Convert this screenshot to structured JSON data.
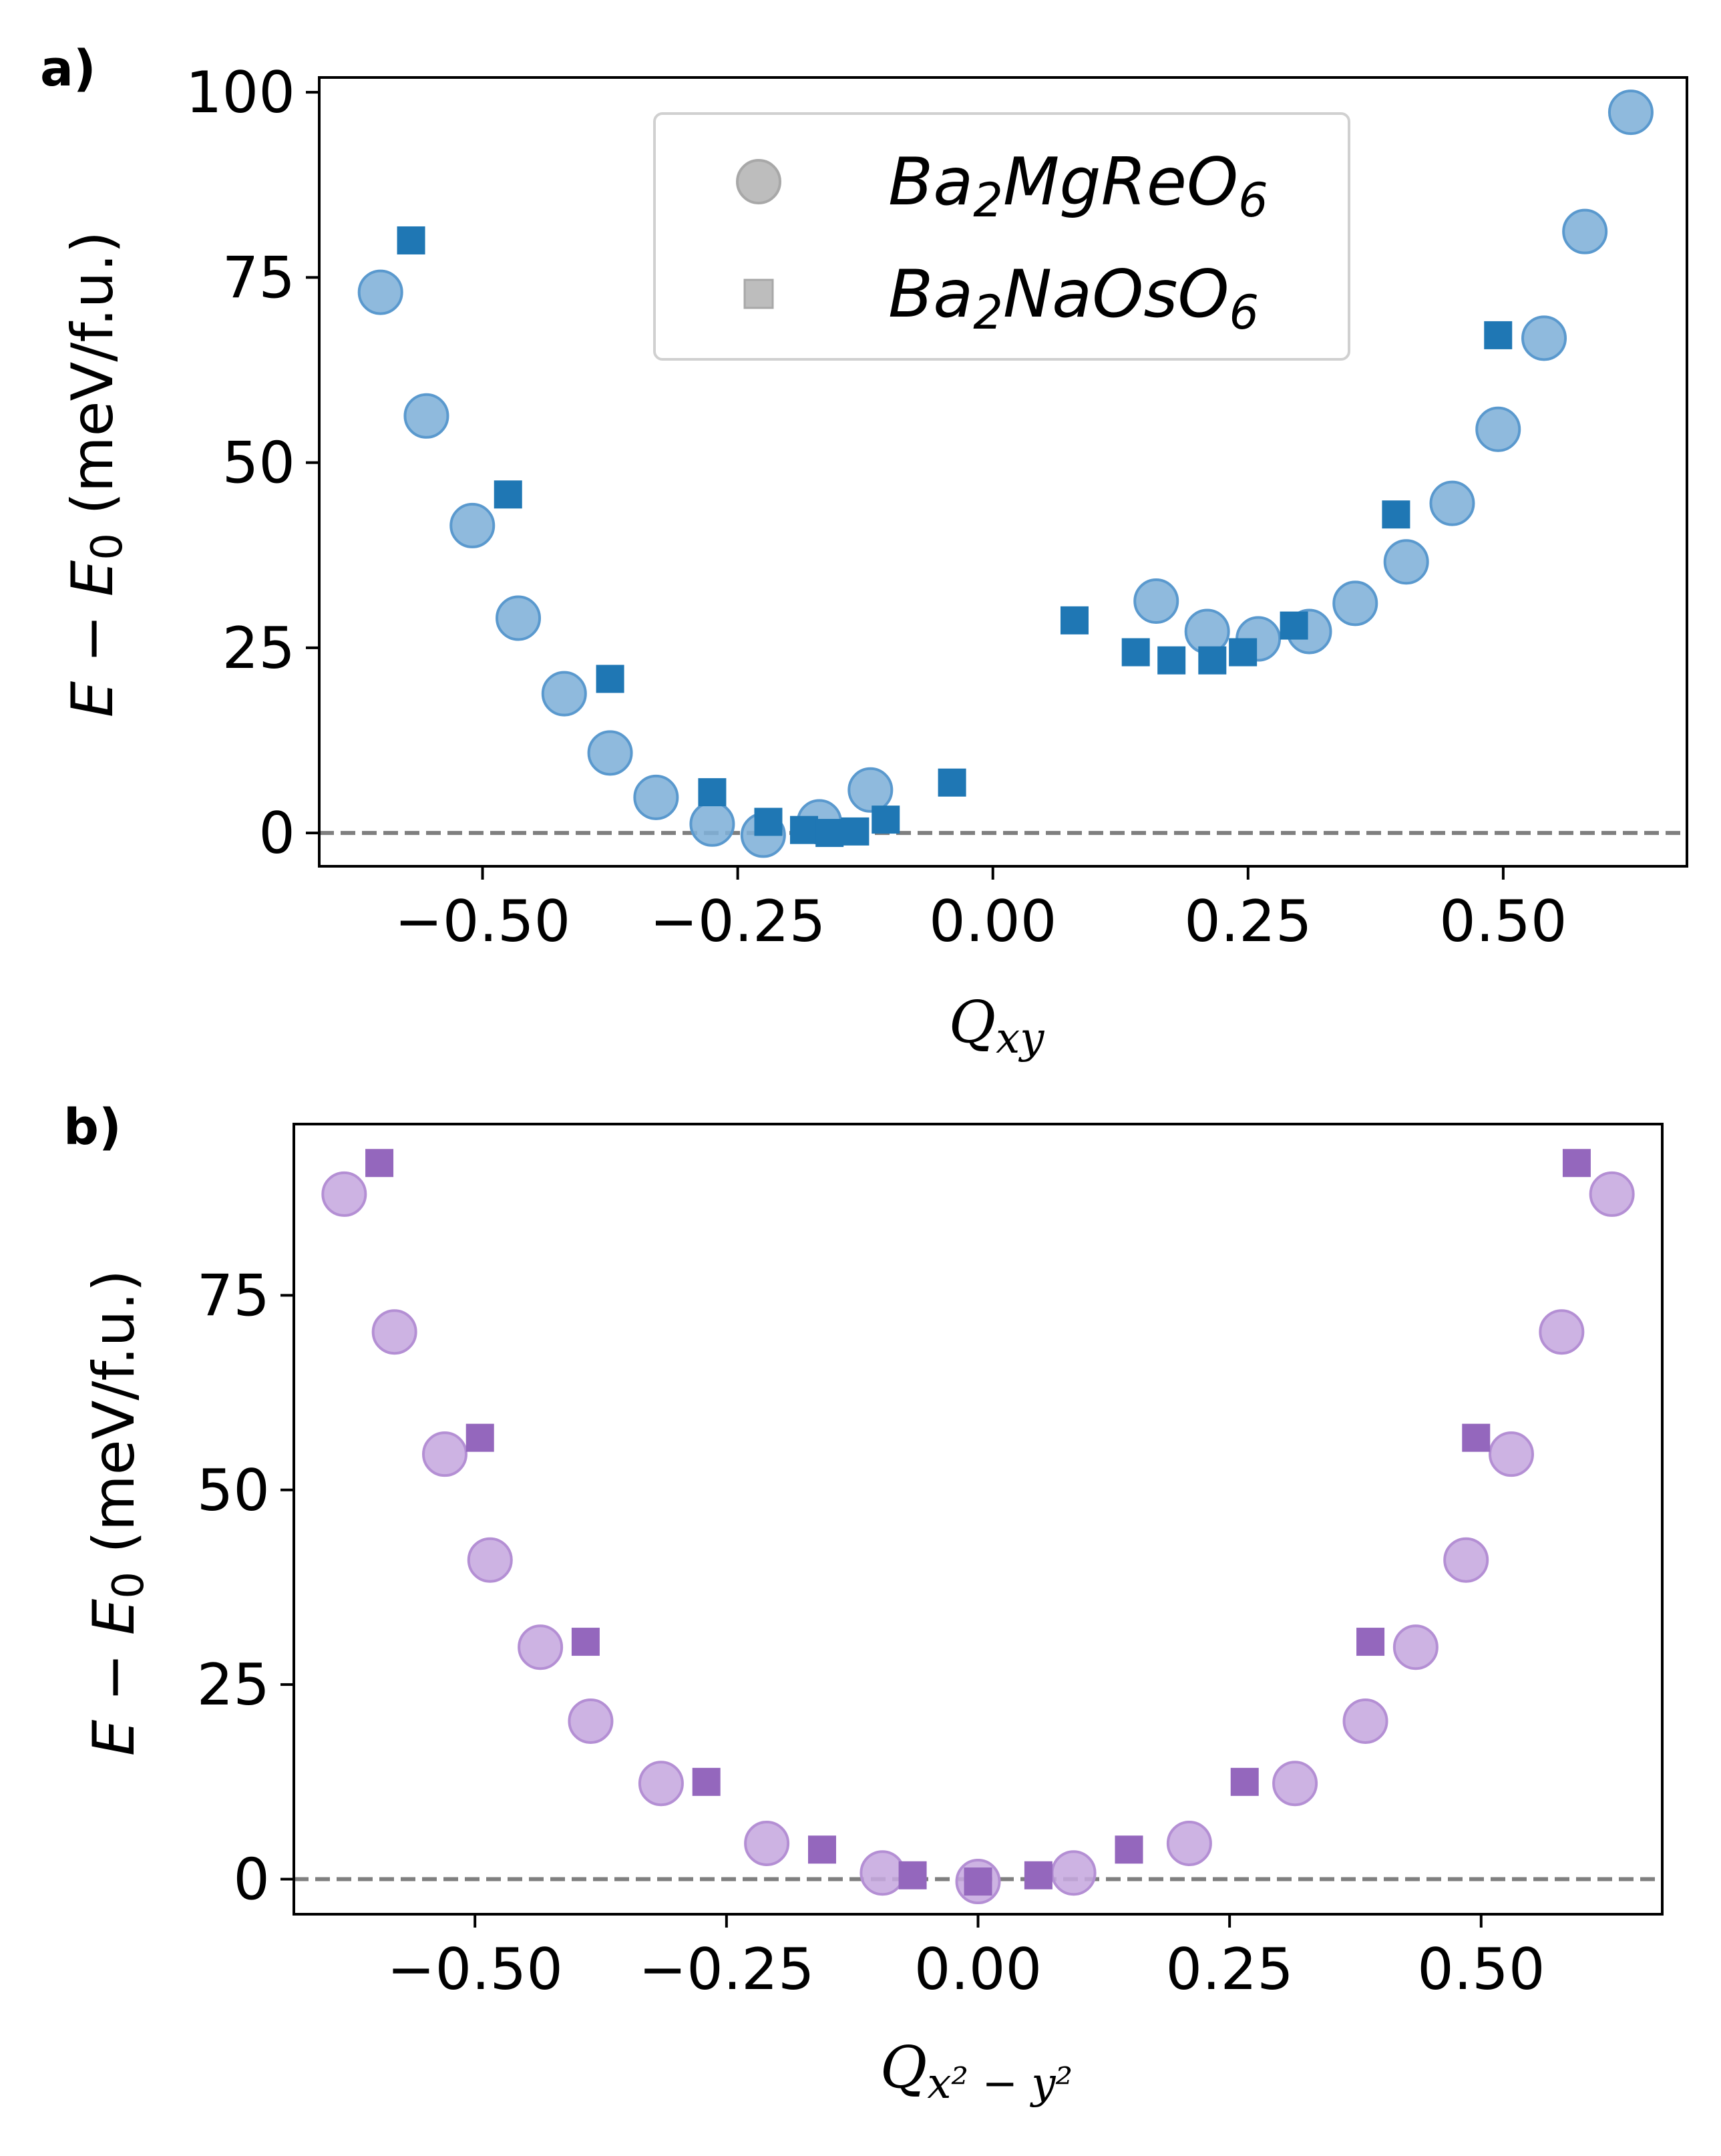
{
  "chart_data": [
    {
      "type": "scatter",
      "panel_label": "a)",
      "xlabel_main": "Q",
      "xlabel_sub": "xy",
      "ylabel": "E − E",
      "ylabel_sub": "0",
      "ylabel_units": " (meV/f.u.)",
      "xlim": [
        -0.66,
        0.68
      ],
      "ylim": [
        -4.5,
        102
      ],
      "xticks": [
        -0.5,
        -0.25,
        0.0,
        0.25,
        0.5
      ],
      "xtick_labels": [
        "−0.50",
        "−0.25",
        "0.00",
        "0.25",
        "0.50"
      ],
      "yticks": [
        0,
        25,
        50,
        75,
        100
      ],
      "ytick_labels": [
        "0",
        "25",
        "50",
        "75",
        "100"
      ],
      "reference_line_y": 0,
      "legend": {
        "placement": "top-center",
        "entries": [
          {
            "label_main": "Ba",
            "s1": "2",
            "label_mid": "MgReO",
            "s2": "6",
            "marker": "circle"
          },
          {
            "label_main": "Ba",
            "s1": "2",
            "label_mid": "NaOsO",
            "s2": "6",
            "marker": "square"
          }
        ]
      },
      "series": [
        {
          "name": "Ba2MgReO6",
          "marker": "circle",
          "color": "#7fb0d8",
          "edge_color": "#5a99ce",
          "points": [
            [
              -0.6,
              73.0
            ],
            [
              -0.555,
              56.3
            ],
            [
              -0.51,
              41.5
            ],
            [
              -0.465,
              29.0
            ],
            [
              -0.42,
              18.8
            ],
            [
              -0.375,
              10.8
            ],
            [
              -0.33,
              4.8
            ],
            [
              -0.275,
              1.2
            ],
            [
              -0.225,
              -0.3
            ],
            [
              -0.17,
              1.5
            ],
            [
              -0.12,
              5.8
            ],
            [
              0.16,
              31.3
            ],
            [
              0.21,
              27.2
            ],
            [
              0.26,
              26.2
            ],
            [
              0.31,
              27.2
            ],
            [
              0.355,
              31.0
            ],
            [
              0.405,
              36.6
            ],
            [
              0.45,
              44.5
            ],
            [
              0.495,
              54.5
            ],
            [
              0.54,
              66.8
            ],
            [
              0.58,
              81.2
            ],
            [
              0.625,
              97.3
            ]
          ]
        },
        {
          "name": "Ba2NaOsO6",
          "marker": "square",
          "color": "#1f77b4",
          "points": [
            [
              -0.57,
              80.0
            ],
            [
              -0.475,
              45.7
            ],
            [
              -0.375,
              20.8
            ],
            [
              -0.275,
              5.5
            ],
            [
              -0.22,
              1.5
            ],
            [
              -0.185,
              0.4
            ],
            [
              -0.16,
              0.0
            ],
            [
              -0.135,
              0.2
            ],
            [
              -0.105,
              1.8
            ],
            [
              -0.04,
              6.8
            ],
            [
              0.08,
              28.7
            ],
            [
              0.14,
              24.4
            ],
            [
              0.175,
              23.3
            ],
            [
              0.215,
              23.3
            ],
            [
              0.245,
              24.4
            ],
            [
              0.295,
              28.0
            ],
            [
              0.395,
              43.0
            ],
            [
              0.495,
              67.2
            ]
          ]
        }
      ]
    },
    {
      "type": "scatter",
      "panel_label": "b)",
      "xlabel_main": "Q",
      "xlabel_sub": "x² − y²",
      "ylabel": "E − E",
      "ylabel_sub": "0",
      "ylabel_units": " (meV/f.u.)",
      "xlim": [
        -0.68,
        0.68
      ],
      "ylim": [
        -4.5,
        97
      ],
      "xticks": [
        -0.5,
        -0.25,
        0.0,
        0.25,
        0.5
      ],
      "xtick_labels": [
        "−0.50",
        "−0.25",
        "0.00",
        "0.25",
        "0.50"
      ],
      "yticks": [
        0,
        25,
        50,
        75
      ],
      "ytick_labels": [
        "0",
        "25",
        "50",
        "75"
      ],
      "reference_line_y": 0,
      "series": [
        {
          "name": "Ba2MgReO6",
          "marker": "circle",
          "color": "#c6a8df",
          "edge_color": "#b48fd4",
          "points": [
            [
              -0.63,
              88.0
            ],
            [
              -0.58,
              70.3
            ],
            [
              -0.53,
              54.6
            ],
            [
              -0.485,
              41.0
            ],
            [
              -0.435,
              29.8
            ],
            [
              -0.385,
              20.3
            ],
            [
              -0.315,
              12.3
            ],
            [
              -0.21,
              4.6
            ],
            [
              -0.095,
              0.8
            ],
            [
              0.0,
              -0.3
            ],
            [
              0.095,
              0.8
            ],
            [
              0.21,
              4.6
            ],
            [
              0.315,
              12.3
            ],
            [
              0.385,
              20.3
            ],
            [
              0.435,
              29.8
            ],
            [
              0.485,
              41.0
            ],
            [
              0.53,
              54.6
            ],
            [
              0.58,
              70.3
            ],
            [
              0.63,
              88.0
            ]
          ]
        },
        {
          "name": "Ba2NaOsO6",
          "marker": "square",
          "color": "#9467bd",
          "points": [
            [
              -0.595,
              92.0
            ],
            [
              -0.495,
              56.7
            ],
            [
              -0.39,
              30.5
            ],
            [
              -0.27,
              12.5
            ],
            [
              -0.155,
              3.8
            ],
            [
              -0.065,
              0.5
            ],
            [
              0.0,
              -0.3
            ],
            [
              0.06,
              0.5
            ],
            [
              0.15,
              3.8
            ],
            [
              0.265,
              12.5
            ],
            [
              0.39,
              30.5
            ],
            [
              0.495,
              56.7
            ],
            [
              0.595,
              92.0
            ]
          ]
        }
      ]
    }
  ]
}
